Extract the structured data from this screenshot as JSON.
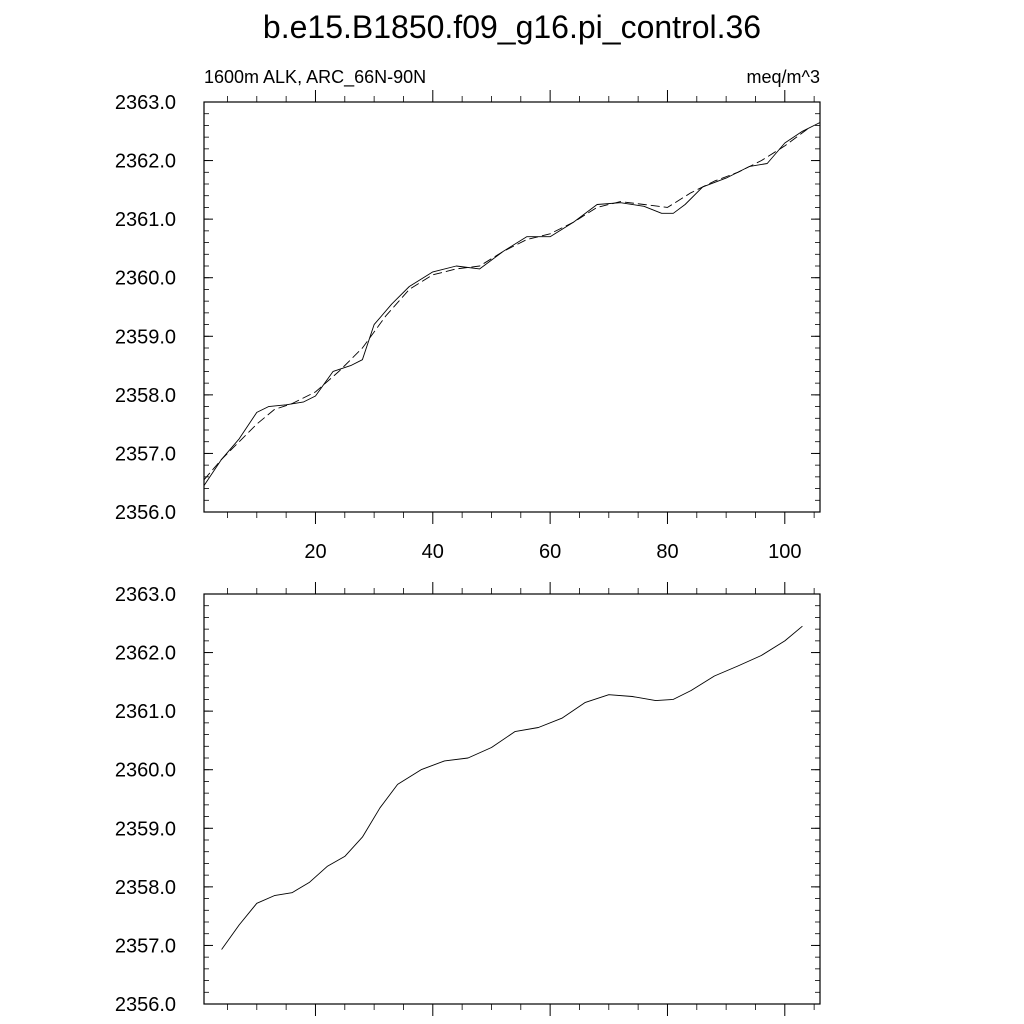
{
  "figure": {
    "title": "b.e15.B1850.f09_g16.pi_control.36"
  },
  "chart_data": [
    {
      "type": "line",
      "left_label": "1600m ALK, ARC_66N-90N",
      "right_label": "meq/m^3",
      "xlim": [
        1,
        106
      ],
      "ylim": [
        2356.0,
        2363.0
      ],
      "x_ticks": [
        20,
        40,
        60,
        80,
        100
      ],
      "y_ticks": [
        "2356.0",
        "2357.0",
        "2358.0",
        "2359.0",
        "2360.0",
        "2361.0",
        "2362.0",
        "2363.0"
      ],
      "series": [
        {
          "style": "solid",
          "x": [
            1,
            4,
            7,
            10,
            12,
            15,
            18,
            20,
            23,
            26,
            28,
            30,
            33,
            36,
            40,
            44,
            48,
            52,
            56,
            60,
            64,
            68,
            72,
            76,
            79,
            81,
            83,
            86,
            90,
            94,
            97,
            100,
            103,
            106
          ],
          "y": [
            2356.45,
            2356.9,
            2357.25,
            2357.7,
            2357.8,
            2357.83,
            2357.88,
            2357.98,
            2358.4,
            2358.5,
            2358.6,
            2359.2,
            2359.55,
            2359.85,
            2360.1,
            2360.2,
            2360.15,
            2360.45,
            2360.7,
            2360.7,
            2360.95,
            2361.25,
            2361.28,
            2361.22,
            2361.1,
            2361.1,
            2361.25,
            2361.55,
            2361.7,
            2361.9,
            2361.95,
            2362.3,
            2362.5,
            2362.65
          ]
        },
        {
          "style": "dashed",
          "x": [
            1,
            4,
            7,
            10,
            13,
            16,
            20,
            24,
            28,
            32,
            36,
            40,
            44,
            48,
            52,
            56,
            60,
            64,
            68,
            72,
            76,
            80,
            84,
            88,
            92,
            96,
            100,
            104
          ],
          "y": [
            2356.55,
            2356.9,
            2357.2,
            2357.5,
            2357.75,
            2357.85,
            2358.05,
            2358.4,
            2358.8,
            2359.35,
            2359.8,
            2360.05,
            2360.15,
            2360.2,
            2360.45,
            2360.65,
            2360.75,
            2360.95,
            2361.2,
            2361.3,
            2361.25,
            2361.2,
            2361.45,
            2361.65,
            2361.8,
            2362.0,
            2362.25,
            2362.55
          ]
        }
      ]
    },
    {
      "type": "line",
      "xlim": [
        1,
        106
      ],
      "ylim": [
        2356.0,
        2363.0
      ],
      "y_ticks": [
        "2356.0",
        "2357.0",
        "2358.0",
        "2359.0",
        "2360.0",
        "2361.0",
        "2362.0",
        "2363.0"
      ],
      "series": [
        {
          "style": "solid",
          "x": [
            4,
            7,
            10,
            13,
            16,
            19,
            22,
            25,
            28,
            31,
            34,
            38,
            42,
            46,
            50,
            54,
            58,
            62,
            66,
            70,
            74,
            78,
            81,
            84,
            88,
            92,
            96,
            100,
            103
          ],
          "y": [
            2356.93,
            2357.35,
            2357.72,
            2357.85,
            2357.9,
            2358.08,
            2358.35,
            2358.52,
            2358.85,
            2359.35,
            2359.75,
            2360.0,
            2360.15,
            2360.2,
            2360.38,
            2360.65,
            2360.72,
            2360.88,
            2361.15,
            2361.28,
            2361.25,
            2361.18,
            2361.2,
            2361.35,
            2361.6,
            2361.77,
            2361.95,
            2362.2,
            2362.45
          ]
        }
      ]
    }
  ]
}
